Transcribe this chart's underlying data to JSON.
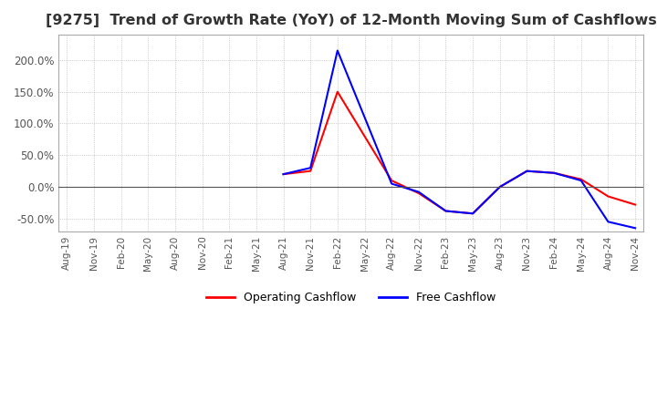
{
  "title": "[9275]  Trend of Growth Rate (YoY) of 12-Month Moving Sum of Cashflows",
  "title_fontsize": 11.5,
  "title_color": "#333333",
  "background_color": "#ffffff",
  "grid_color": "#aaaaaa",
  "legend_labels": [
    "Operating Cashflow",
    "Free Cashflow"
  ],
  "legend_colors": [
    "red",
    "blue"
  ],
  "x_labels": [
    "Aug-19",
    "Nov-19",
    "Feb-20",
    "May-20",
    "Aug-20",
    "Nov-20",
    "Feb-21",
    "May-21",
    "Aug-21",
    "Nov-21",
    "Feb-22",
    "May-22",
    "Aug-22",
    "Nov-22",
    "Feb-23",
    "May-23",
    "Aug-23",
    "Nov-23",
    "Feb-24",
    "May-24",
    "Aug-24",
    "Nov-24"
  ],
  "operating_cashflow": [
    null,
    null,
    null,
    null,
    null,
    null,
    null,
    null,
    0.2,
    0.25,
    1.5,
    0.8,
    0.1,
    -0.1,
    -0.38,
    -0.42,
    0.0,
    0.25,
    0.22,
    0.12,
    -0.15,
    -0.28
  ],
  "free_cashflow": [
    null,
    null,
    null,
    null,
    null,
    null,
    null,
    null,
    0.2,
    0.3,
    2.15,
    1.1,
    0.05,
    -0.08,
    -0.38,
    -0.42,
    0.0,
    0.25,
    0.22,
    0.1,
    -0.55,
    -0.65
  ]
}
